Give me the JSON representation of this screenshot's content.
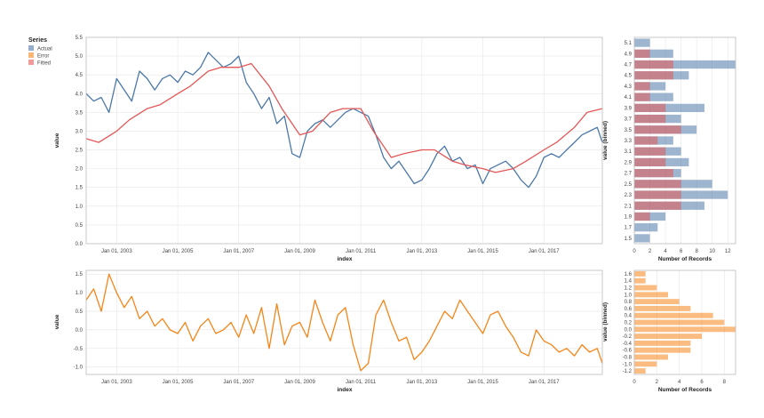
{
  "colors": {
    "actual": "#4c78a8",
    "error": "#f58518",
    "fitted": "#e45756",
    "grid": "#e6e6e6"
  },
  "legend": {
    "title": "Series",
    "items": [
      {
        "label": "Actual",
        "color": "#4c78a8"
      },
      {
        "label": "Error",
        "color": "#f58518"
      },
      {
        "label": "Fitted",
        "color": "#e45756"
      }
    ]
  },
  "chart_data": [
    {
      "id": "main",
      "type": "line",
      "xlabel": "index",
      "ylabel": "value",
      "grid": true,
      "legend_position": "top-left",
      "xlim": [
        "2002-01-01",
        "2018-12-01"
      ],
      "ylim": [
        0,
        5.5
      ],
      "x_ticks": [
        "Jan 01, 2003",
        "Jan 01, 2005",
        "Jan 01, 2007",
        "Jan 01, 2009",
        "Jan 01, 2011",
        "Jan 01, 2013",
        "Jan 01, 2015",
        "Jan 01, 2017"
      ],
      "y_ticks": [
        "0.0",
        "0.5",
        "1.0",
        "1.5",
        "2.0",
        "2.5",
        "3.0",
        "3.5",
        "4.0",
        "4.5",
        "5.0",
        "5.5"
      ],
      "series": [
        {
          "name": "Actual",
          "color": "#4c78a8",
          "x": [
            "2002-01-01",
            "2002-04-01",
            "2002-07-01",
            "2002-10-01",
            "2003-01-01",
            "2003-04-01",
            "2003-07-01",
            "2003-10-01",
            "2004-01-01",
            "2004-04-01",
            "2004-07-01",
            "2004-10-01",
            "2005-01-01",
            "2005-04-01",
            "2005-07-01",
            "2005-10-01",
            "2006-01-01",
            "2006-04-01",
            "2006-07-01",
            "2006-10-01",
            "2007-01-01",
            "2007-04-01",
            "2007-07-01",
            "2007-10-01",
            "2008-01-01",
            "2008-04-01",
            "2008-07-01",
            "2008-10-01",
            "2009-01-01",
            "2009-04-01",
            "2009-07-01",
            "2009-10-01",
            "2010-01-01",
            "2010-04-01",
            "2010-07-01",
            "2010-10-01",
            "2011-01-01",
            "2011-04-01",
            "2011-07-01",
            "2011-10-01",
            "2012-01-01",
            "2012-04-01",
            "2012-07-01",
            "2012-10-01",
            "2013-01-01",
            "2013-04-01",
            "2013-07-01",
            "2013-10-01",
            "2014-01-01",
            "2014-04-01",
            "2014-07-01",
            "2014-10-01",
            "2015-01-01",
            "2015-04-01",
            "2015-07-01",
            "2015-10-01",
            "2016-01-01",
            "2016-04-01",
            "2016-07-01",
            "2016-10-01",
            "2017-01-01",
            "2017-04-01",
            "2017-07-01",
            "2017-10-01",
            "2018-01-01",
            "2018-04-01",
            "2018-07-01",
            "2018-10-01",
            "2018-12-01"
          ],
          "y": [
            4.0,
            3.8,
            3.9,
            3.5,
            4.4,
            4.1,
            3.8,
            4.6,
            4.4,
            4.1,
            4.4,
            4.5,
            4.3,
            4.6,
            4.5,
            4.7,
            5.1,
            4.9,
            4.7,
            4.8,
            5.0,
            4.3,
            4.0,
            3.6,
            3.9,
            3.2,
            3.4,
            2.4,
            2.3,
            3.0,
            3.2,
            3.3,
            3.1,
            3.3,
            3.5,
            3.6,
            3.5,
            3.4,
            2.9,
            2.3,
            2.0,
            2.2,
            1.9,
            1.6,
            1.7,
            2.0,
            2.4,
            2.6,
            2.2,
            2.3,
            2.0,
            2.1,
            1.6,
            2.0,
            2.1,
            2.2,
            2.0,
            1.7,
            1.5,
            1.8,
            2.3,
            2.4,
            2.3,
            2.5,
            2.7,
            2.9,
            3.0,
            3.1,
            2.7
          ]
        },
        {
          "name": "Fitted",
          "color": "#e45756",
          "x": [
            "2002-01-01",
            "2002-06-01",
            "2003-01-01",
            "2003-06-01",
            "2004-01-01",
            "2004-06-01",
            "2005-01-01",
            "2005-06-01",
            "2006-01-01",
            "2006-06-01",
            "2007-01-01",
            "2007-06-01",
            "2008-01-01",
            "2008-06-01",
            "2009-01-01",
            "2009-06-01",
            "2010-01-01",
            "2010-06-01",
            "2011-01-01",
            "2011-06-01",
            "2012-01-01",
            "2012-06-01",
            "2013-01-01",
            "2013-06-01",
            "2014-01-01",
            "2014-06-01",
            "2015-01-01",
            "2015-06-01",
            "2016-01-01",
            "2016-06-01",
            "2017-01-01",
            "2017-06-01",
            "2018-01-01",
            "2018-06-01",
            "2018-12-01"
          ],
          "y": [
            2.8,
            2.7,
            3.0,
            3.3,
            3.6,
            3.7,
            4.0,
            4.2,
            4.6,
            4.7,
            4.7,
            4.8,
            4.2,
            3.6,
            2.9,
            3.0,
            3.5,
            3.6,
            3.6,
            3.0,
            2.3,
            2.4,
            2.5,
            2.5,
            2.2,
            2.1,
            2.0,
            1.9,
            2.0,
            2.2,
            2.5,
            2.7,
            3.1,
            3.5,
            3.6
          ]
        }
      ]
    },
    {
      "id": "main-hist",
      "type": "bar",
      "orientation": "horizontal",
      "xlabel": "Number of Records",
      "ylabel": "value (binned)",
      "xlim": [
        0,
        13
      ],
      "x_ticks": [
        "0",
        "2",
        "4",
        "6",
        "8",
        "10",
        "12"
      ],
      "categories": [
        "5.1",
        "4.9",
        "4.7",
        "4.5",
        "4.3",
        "4.1",
        "3.9",
        "3.7",
        "3.5",
        "3.3",
        "3.1",
        "2.9",
        "2.7",
        "2.5",
        "2.3",
        "2.1",
        "1.9",
        "1.7",
        "1.5"
      ],
      "series": [
        {
          "name": "Actual",
          "color": "#4c78a8",
          "values": [
            2,
            5,
            13,
            7,
            4,
            5,
            9,
            6,
            8,
            5,
            6,
            7,
            6,
            10,
            12,
            9,
            4,
            3,
            2
          ]
        },
        {
          "name": "Fitted",
          "color": "#e45756",
          "values": [
            0,
            2,
            5,
            5,
            2,
            2,
            4,
            4,
            6,
            3,
            4,
            4,
            5,
            6,
            6,
            6,
            2,
            0,
            0
          ]
        }
      ]
    },
    {
      "id": "error",
      "type": "line",
      "xlabel": "index",
      "ylabel": "value",
      "grid": true,
      "xlim": [
        "2002-01-01",
        "2018-12-01"
      ],
      "ylim": [
        -1.2,
        1.6
      ],
      "x_ticks": [
        "Jan 01, 2003",
        "Jan 01, 2005",
        "Jan 01, 2007",
        "Jan 01, 2009",
        "Jan 01, 2011",
        "Jan 01, 2013",
        "Jan 01, 2015",
        "Jan 01, 2017"
      ],
      "y_ticks": [
        "-1.0",
        "-0.5",
        "0.0",
        "0.5",
        "1.0",
        "1.5"
      ],
      "series": [
        {
          "name": "Error",
          "color": "#f58518",
          "x": [
            "2002-01-01",
            "2002-04-01",
            "2002-07-01",
            "2002-10-01",
            "2003-01-01",
            "2003-04-01",
            "2003-07-01",
            "2003-10-01",
            "2004-01-01",
            "2004-04-01",
            "2004-07-01",
            "2004-10-01",
            "2005-01-01",
            "2005-04-01",
            "2005-07-01",
            "2005-10-01",
            "2006-01-01",
            "2006-04-01",
            "2006-07-01",
            "2006-10-01",
            "2007-01-01",
            "2007-04-01",
            "2007-07-01",
            "2007-10-01",
            "2008-01-01",
            "2008-04-01",
            "2008-07-01",
            "2008-10-01",
            "2009-01-01",
            "2009-04-01",
            "2009-07-01",
            "2009-10-01",
            "2010-01-01",
            "2010-04-01",
            "2010-07-01",
            "2010-10-01",
            "2011-01-01",
            "2011-04-01",
            "2011-07-01",
            "2011-10-01",
            "2012-01-01",
            "2012-04-01",
            "2012-07-01",
            "2012-10-01",
            "2013-01-01",
            "2013-04-01",
            "2013-07-01",
            "2013-10-01",
            "2014-01-01",
            "2014-04-01",
            "2014-07-01",
            "2014-10-01",
            "2015-01-01",
            "2015-04-01",
            "2015-07-01",
            "2015-10-01",
            "2016-01-01",
            "2016-04-01",
            "2016-07-01",
            "2016-10-01",
            "2017-01-01",
            "2017-04-01",
            "2017-07-01",
            "2017-10-01",
            "2018-01-01",
            "2018-04-01",
            "2018-07-01",
            "2018-10-01",
            "2018-12-01"
          ],
          "y": [
            0.8,
            1.1,
            0.5,
            1.5,
            1.0,
            0.6,
            0.9,
            0.3,
            0.5,
            0.1,
            0.3,
            0.0,
            -0.1,
            0.2,
            -0.3,
            0.1,
            0.3,
            -0.1,
            0.0,
            0.2,
            -0.2,
            0.4,
            -0.1,
            0.6,
            -0.5,
            0.7,
            -0.4,
            0.1,
            0.2,
            -0.2,
            0.8,
            0.2,
            -0.3,
            0.4,
            0.6,
            -0.4,
            -1.1,
            -0.9,
            0.4,
            0.8,
            0.2,
            -0.3,
            -0.2,
            -0.8,
            -0.6,
            -0.3,
            0.1,
            0.5,
            0.3,
            0.8,
            0.5,
            0.2,
            -0.1,
            0.4,
            0.5,
            0.1,
            -0.2,
            -0.6,
            -0.7,
            0.0,
            -0.3,
            -0.4,
            -0.6,
            -0.5,
            -0.7,
            -0.4,
            -0.6,
            -0.5,
            -0.9
          ]
        }
      ]
    },
    {
      "id": "error-hist",
      "type": "bar",
      "orientation": "horizontal",
      "xlabel": "Number of Records",
      "ylabel": "value (binned)",
      "xlim": [
        0,
        9
      ],
      "x_ticks": [
        "0",
        "2",
        "4",
        "6",
        "8"
      ],
      "categories": [
        "1.6",
        "1.4",
        "1.2",
        "1.0",
        "0.8",
        "0.6",
        "0.4",
        "0.2",
        "0.0",
        "-0.2",
        "-0.4",
        "-0.6",
        "-0.8",
        "-1.0",
        "-1.2"
      ],
      "series": [
        {
          "name": "Error",
          "color": "#f58518",
          "values": [
            1,
            1,
            2,
            3,
            4,
            5,
            7,
            8,
            9,
            6,
            5,
            5,
            3,
            2,
            1
          ]
        }
      ]
    }
  ]
}
